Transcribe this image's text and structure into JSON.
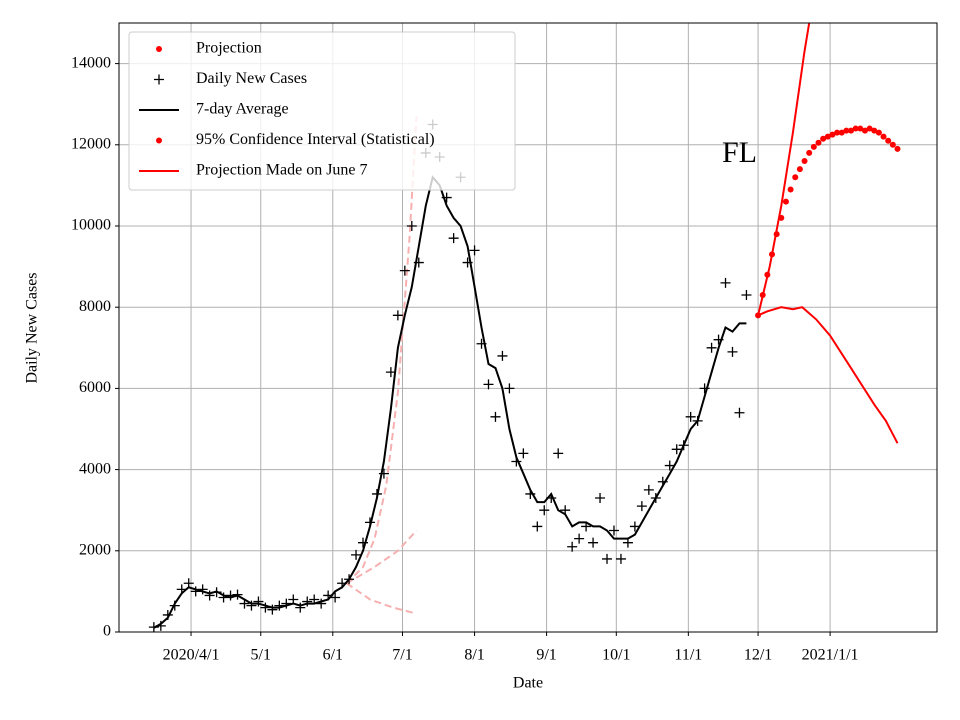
{
  "chart_data": {
    "type": "line",
    "xlabel": "Date",
    "ylabel": "Daily New Cases",
    "xlim": [
      0,
      352
    ],
    "ylim": [
      0,
      15000
    ],
    "xticks": [
      {
        "value": 31,
        "label": "2020/4/1"
      },
      {
        "value": 61,
        "label": "5/1"
      },
      {
        "value": 92,
        "label": "6/1"
      },
      {
        "value": 122,
        "label": "7/1"
      },
      {
        "value": 153,
        "label": "8/1"
      },
      {
        "value": 184,
        "label": "9/1"
      },
      {
        "value": 214,
        "label": "10/1"
      },
      {
        "value": 245,
        "label": "11/1"
      },
      {
        "value": 275,
        "label": "12/1"
      },
      {
        "value": 306,
        "label": "2021/1/1"
      }
    ],
    "yticks": [
      0,
      2000,
      4000,
      6000,
      8000,
      10000,
      12000,
      14000
    ],
    "grid": true,
    "legend": "upper left",
    "annotation": {
      "text": "FL",
      "x": 267,
      "y": 11750
    },
    "series": [
      {
        "name": "Projection",
        "color": "red",
        "marker": "dot",
        "x": [
          275,
          277,
          279,
          281,
          283,
          285,
          287,
          289,
          291,
          293,
          295,
          297,
          299,
          301,
          303,
          305,
          307,
          309,
          311,
          313,
          315,
          317,
          319,
          321,
          323,
          325,
          327,
          329,
          331,
          333,
          335
        ],
        "values": [
          7800,
          8300,
          8800,
          9300,
          9800,
          10200,
          10600,
          10900,
          11200,
          11400,
          11600,
          11800,
          11950,
          12050,
          12150,
          12200,
          12250,
          12300,
          12300,
          12350,
          12350,
          12400,
          12400,
          12350,
          12400,
          12350,
          12300,
          12200,
          12100,
          12000,
          11900
        ]
      },
      {
        "name": "Daily New Cases",
        "color": "black",
        "marker": "plus",
        "x": [
          15,
          18,
          21,
          24,
          27,
          30,
          33,
          36,
          39,
          42,
          45,
          48,
          51,
          54,
          57,
          60,
          63,
          66,
          69,
          72,
          75,
          78,
          81,
          84,
          87,
          90,
          93,
          96,
          99,
          102,
          105,
          108,
          111,
          114,
          117,
          120,
          123,
          126,
          129,
          132,
          135,
          138,
          141,
          144,
          147,
          150,
          153,
          156,
          159,
          162,
          165,
          168,
          171,
          174,
          177,
          180,
          183,
          186,
          189,
          192,
          195,
          198,
          201,
          204,
          207,
          210,
          213,
          216,
          219,
          222,
          225,
          228,
          231,
          234,
          237,
          240,
          243,
          246,
          249,
          252,
          255,
          258,
          261,
          264,
          267,
          270
        ],
        "values": [
          120,
          150,
          420,
          650,
          1050,
          1200,
          1000,
          1050,
          900,
          980,
          850,
          900,
          920,
          700,
          650,
          750,
          600,
          550,
          650,
          700,
          800,
          600,
          750,
          800,
          700,
          900,
          850,
          1200,
          1300,
          1900,
          2200,
          2700,
          3400,
          3900,
          6400,
          7800,
          8900,
          10000,
          9100,
          11800,
          12500,
          11700,
          10700,
          9700,
          11200,
          9100,
          9400,
          7100,
          6100,
          5300,
          6800,
          6000,
          4200,
          4400,
          3400,
          2600,
          3000,
          3300,
          4400,
          3000,
          2100,
          2300,
          2600,
          2200,
          3300,
          1800,
          2500,
          1800,
          2200,
          2600,
          3100,
          3500,
          3300,
          3700,
          4100,
          4500,
          4600,
          5300,
          5200,
          6000,
          7000,
          7200,
          8600,
          6900,
          5400,
          8300
        ]
      },
      {
        "name": "7-day Average",
        "color": "black",
        "line": "solid",
        "x": [
          15,
          18,
          21,
          24,
          27,
          30,
          33,
          36,
          39,
          42,
          45,
          48,
          51,
          54,
          57,
          60,
          63,
          66,
          69,
          72,
          75,
          78,
          81,
          84,
          87,
          90,
          93,
          96,
          99,
          102,
          105,
          108,
          111,
          114,
          117,
          120,
          123,
          126,
          129,
          132,
          135,
          138,
          141,
          144,
          147,
          150,
          153,
          156,
          159,
          162,
          165,
          168,
          171,
          174,
          177,
          180,
          183,
          186,
          189,
          192,
          195,
          198,
          201,
          204,
          207,
          210,
          213,
          216,
          219,
          222,
          225,
          228,
          231,
          234,
          237,
          240,
          243,
          246,
          249,
          252,
          255,
          258,
          261,
          264,
          267,
          270
        ],
        "values": [
          100,
          200,
          350,
          700,
          950,
          1100,
          1050,
          1000,
          950,
          1000,
          900,
          850,
          900,
          800,
          700,
          700,
          650,
          600,
          600,
          650,
          700,
          650,
          700,
          700,
          750,
          800,
          1000,
          1100,
          1300,
          1600,
          2000,
          2600,
          3300,
          4200,
          5500,
          7000,
          7800,
          8500,
          9500,
          10500,
          11200,
          11000,
          10500,
          10200,
          10000,
          9500,
          8500,
          7500,
          6600,
          6500,
          6000,
          5000,
          4300,
          3900,
          3500,
          3200,
          3200,
          3400,
          3000,
          2900,
          2600,
          2700,
          2700,
          2600,
          2600,
          2500,
          2300,
          2300,
          2300,
          2400,
          2700,
          3000,
          3300,
          3600,
          3900,
          4200,
          4600,
          5000,
          5200,
          5800,
          6400,
          7000,
          7500,
          7400,
          7600,
          7600
        ]
      },
      {
        "name": "95% Confidence Interval (Statistical)",
        "color": "red",
        "line": "solid",
        "legend_marker": "dot",
        "lines": [
          {
            "x": [
              275,
              280,
              285,
              290,
              295,
              297
            ],
            "values": [
              7800,
              9000,
              10500,
              12300,
              14300,
              15000
            ]
          },
          {
            "x": [
              275,
              279,
              285,
              290,
              294,
              300,
              306,
              315,
              325,
              330,
              335
            ],
            "values": [
              7800,
              7900,
              8000,
              7950,
              8000,
              7700,
              7300,
              6500,
              5600,
              5200,
              4650
            ]
          }
        ]
      },
      {
        "name": "Projection Made on June 7",
        "color": "#f7b0b0",
        "line": "dashed",
        "legend_marker": "line",
        "legend_color": "red",
        "lines": [
          {
            "x": [
              98,
              105,
              110,
              115,
              120,
              125,
              128
            ],
            "values": [
              1200,
              1600,
              2300,
              3600,
              5900,
              9700,
              12700
            ]
          },
          {
            "x": [
              98,
              110,
              120,
              128
            ],
            "values": [
              1200,
              1600,
              2000,
              2500
            ]
          },
          {
            "x": [
              98,
              108,
              118,
              128
            ],
            "values": [
              1200,
              800,
              600,
              450
            ]
          }
        ]
      }
    ]
  }
}
